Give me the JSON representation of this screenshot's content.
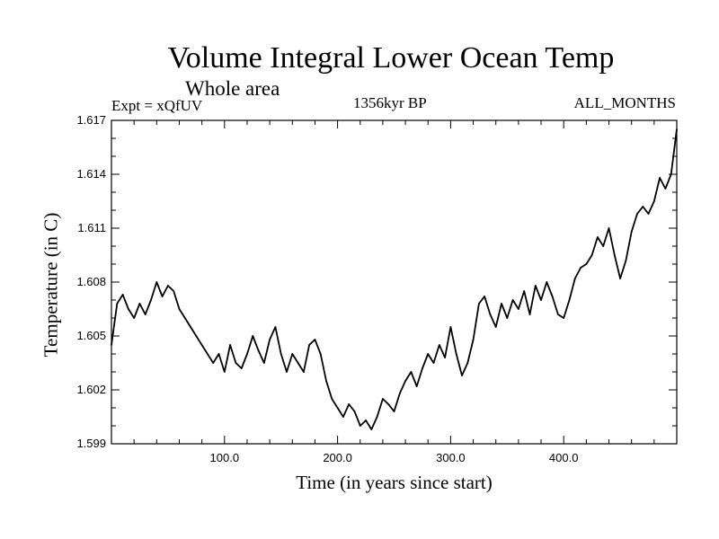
{
  "chart_data": {
    "type": "line",
    "title": "Volume Integral Lower Ocean Temp",
    "subtitle": "Whole area",
    "annotations": {
      "left": "Expt = xQfUV",
      "center": "1356kyr BP",
      "right": "ALL_MONTHS"
    },
    "xlabel": "Time (in years since start)",
    "ylabel": "Temperature (in C)",
    "xlim": [
      0,
      500
    ],
    "ylim": [
      1.599,
      1.617
    ],
    "xticks": [
      100,
      200,
      300,
      400
    ],
    "xtick_labels": [
      "100.0",
      "200.0",
      "300.0",
      "400.0"
    ],
    "yticks": [
      1.599,
      1.602,
      1.605,
      1.608,
      1.611,
      1.614,
      1.617
    ],
    "ytick_labels": [
      "1.599",
      "1.602",
      "1.605",
      "1.608",
      "1.611",
      "1.614",
      "1.617"
    ],
    "grid": false,
    "series": [
      {
        "name": "Temperature",
        "x": [
          0,
          5,
          10,
          15,
          20,
          25,
          30,
          35,
          40,
          45,
          50,
          55,
          60,
          65,
          70,
          75,
          80,
          85,
          90,
          95,
          100,
          105,
          110,
          115,
          120,
          125,
          130,
          135,
          140,
          145,
          150,
          155,
          160,
          165,
          170,
          175,
          180,
          185,
          190,
          195,
          200,
          205,
          210,
          215,
          220,
          225,
          230,
          235,
          240,
          245,
          250,
          255,
          260,
          265,
          270,
          275,
          280,
          285,
          290,
          295,
          300,
          305,
          310,
          315,
          320,
          325,
          330,
          335,
          340,
          345,
          350,
          355,
          360,
          365,
          370,
          375,
          380,
          385,
          390,
          395,
          400,
          405,
          410,
          415,
          420,
          425,
          430,
          435,
          440,
          445,
          450,
          455,
          460,
          465,
          470,
          475,
          480,
          485,
          490,
          495,
          500
        ],
        "values": [
          1.6045,
          1.6068,
          1.6073,
          1.6065,
          1.606,
          1.6068,
          1.6062,
          1.607,
          1.608,
          1.6072,
          1.6078,
          1.6075,
          1.6065,
          1.606,
          1.6055,
          1.605,
          1.6045,
          1.604,
          1.6035,
          1.604,
          1.603,
          1.6045,
          1.6035,
          1.6032,
          1.604,
          1.605,
          1.6042,
          1.6035,
          1.6048,
          1.6055,
          1.604,
          1.603,
          1.604,
          1.6035,
          1.603,
          1.6045,
          1.6048,
          1.604,
          1.6025,
          1.6015,
          1.601,
          1.6005,
          1.6012,
          1.6008,
          1.6,
          1.6003,
          1.5998,
          1.6005,
          1.6015,
          1.6012,
          1.6008,
          1.6018,
          1.6025,
          1.603,
          1.6022,
          1.6032,
          1.604,
          1.6035,
          1.6045,
          1.6038,
          1.6055,
          1.604,
          1.6028,
          1.6035,
          1.6048,
          1.6068,
          1.6072,
          1.6062,
          1.6055,
          1.6068,
          1.606,
          1.607,
          1.6065,
          1.6075,
          1.6062,
          1.6078,
          1.607,
          1.608,
          1.6072,
          1.6062,
          1.606,
          1.607,
          1.6082,
          1.6088,
          1.609,
          1.6095,
          1.6105,
          1.61,
          1.611,
          1.6095,
          1.6082,
          1.6092,
          1.6108,
          1.6118,
          1.6122,
          1.6118,
          1.6125,
          1.6138,
          1.6132,
          1.614,
          1.6165
        ]
      }
    ]
  }
}
